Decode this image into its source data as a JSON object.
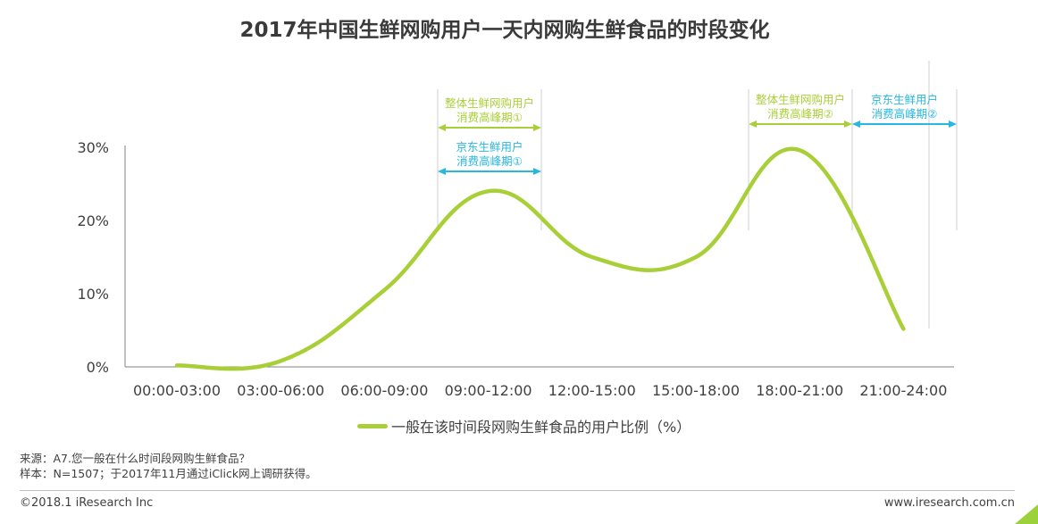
{
  "colors": {
    "series": "#a9cf38",
    "overall_annotation": "#a9cf38",
    "jd_annotation": "#27b7e3",
    "axis": "#808080",
    "guide": "#cfcfcf"
  },
  "chart_data": {
    "type": "line",
    "title": "2017年中国生鲜网购用户一天内网购生鲜食品的时段变化",
    "xlabel": "",
    "ylabel": "",
    "categories": [
      "00:00-03:00",
      "03:00-06:00",
      "06:00-09:00",
      "09:00-12:00",
      "12:00-15:00",
      "15:00-18:00",
      "18:00-21:00",
      "21:00-24:00"
    ],
    "ylim": [
      0,
      30
    ],
    "yticks": [
      "0%",
      "10%",
      "20%",
      "30%"
    ],
    "grid": false,
    "smooth": true,
    "series": [
      {
        "name": "一般在该时间段网购生鲜食品的用户比例（%）",
        "values": [
          0.2,
          0.8,
          10.5,
          24.0,
          15.0,
          15.0,
          29.6,
          5.2
        ]
      }
    ],
    "legend": "bottom-center",
    "annotations": [
      {
        "label_line1": "整体生鲜网购用户",
        "label_line2": "消费高峰期①",
        "group": "overall",
        "from": "09:00-12:00",
        "to": "09:00-12:00"
      },
      {
        "label_line1": "京东生鲜用户",
        "label_line2": "消费高峰期①",
        "group": "jd",
        "from": "09:00-12:00",
        "to": "09:00-12:00"
      },
      {
        "label_line1": "整体生鲜网购用户",
        "label_line2": "消费高峰期②",
        "group": "overall",
        "from": "18:00-21:00",
        "to": "18:00-21:00"
      },
      {
        "label_line1": "京东生鲜用户",
        "label_line2": "消费高峰期②",
        "group": "jd",
        "from": "21:00-24:00",
        "to": "21:00-24:00"
      }
    ]
  },
  "notes": {
    "source": "来源：A7.您一般在什么时间段网购生鲜食品？",
    "sample": "样本：N=1507；于2017年11月通过iClick网上调研获得。"
  },
  "footer": {
    "copyright": "©2018.1 iResearch Inc",
    "website": "www.iresearch.com.cn"
  }
}
